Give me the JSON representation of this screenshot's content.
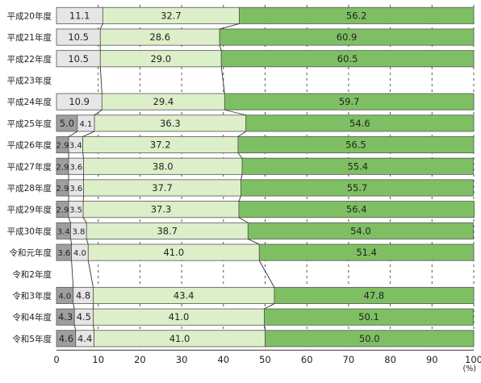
{
  "chart_data": {
    "type": "bar",
    "stacked": true,
    "orientation": "horizontal",
    "percent_stacked": true,
    "categories": [
      "平成20年度",
      "平成21年度",
      "平成22年度",
      "平成23年度",
      "平成24年度",
      "平成25年度",
      "平成26年度",
      "平成27年度",
      "平成28年度",
      "平成29年度",
      "平成30年度",
      "令和元年度",
      "令和2年度",
      "令和3年度",
      "令和4年度",
      "令和5年度"
    ],
    "series": [
      {
        "color": "#9e9e9e",
        "values": [
          null,
          null,
          null,
          null,
          null,
          5.0,
          2.9,
          2.9,
          2.9,
          2.9,
          3.4,
          3.6,
          null,
          4.0,
          4.3,
          4.6
        ],
        "value_labels": [
          null,
          null,
          null,
          null,
          null,
          "5.0",
          "2.9",
          "2.9",
          "2.9",
          "2.9",
          "3.4",
          "3.6",
          null,
          "4.0",
          "4.3",
          "4.6"
        ]
      },
      {
        "color": "#e6e6e6",
        "values": [
          11.1,
          10.5,
          10.5,
          null,
          10.9,
          4.1,
          3.4,
          3.6,
          3.6,
          3.5,
          3.8,
          4.0,
          null,
          4.8,
          4.5,
          4.4
        ],
        "value_labels": [
          "11.1",
          "10.5",
          "10.5",
          null,
          "10.9",
          "4.1",
          "3.4",
          "3.6",
          "3.6",
          "3.5",
          "3.8",
          "4.0",
          null,
          "4.8",
          "4.5",
          "4.4"
        ]
      },
      {
        "color": "#dcefc9",
        "values": [
          32.7,
          28.6,
          29.0,
          null,
          29.4,
          36.3,
          37.2,
          38.0,
          37.7,
          37.3,
          38.7,
          41.0,
          null,
          43.4,
          41.0,
          41.0
        ],
        "value_labels": [
          "32.7",
          "28.6",
          "29.0",
          null,
          "29.4",
          "36.3",
          "37.2",
          "38.0",
          "37.7",
          "37.3",
          "38.7",
          "41.0",
          null,
          "43.4",
          "41.0",
          "41.0"
        ]
      },
      {
        "color": "#7fbf63",
        "values": [
          56.2,
          60.9,
          60.5,
          null,
          59.7,
          54.6,
          56.5,
          55.4,
          55.7,
          56.4,
          54.0,
          51.4,
          null,
          47.8,
          50.1,
          50.0
        ],
        "value_labels": [
          "56.2",
          "60.9",
          "60.5",
          null,
          "59.7",
          "54.6",
          "56.5",
          "55.4",
          "55.7",
          "56.4",
          "54.0",
          "51.4",
          null,
          "47.8",
          "50.1",
          "50.0"
        ]
      }
    ],
    "xlim": [
      0,
      100
    ],
    "x_ticks": [
      "0",
      "10",
      "20",
      "30",
      "40",
      "50",
      "60",
      "70",
      "80",
      "90",
      "100"
    ],
    "x_unit": "(%)",
    "grid": "vertical-dashed",
    "legend": "none",
    "connector_lines": true
  }
}
